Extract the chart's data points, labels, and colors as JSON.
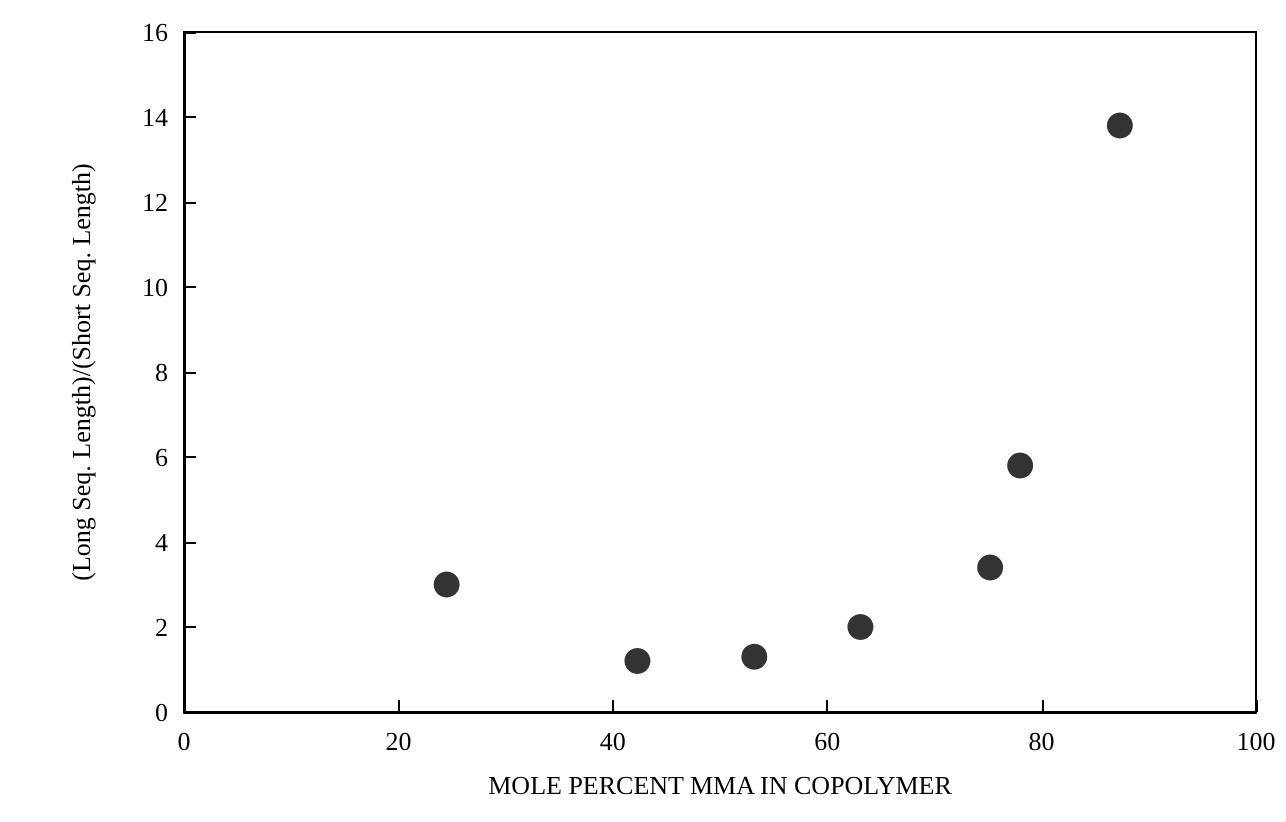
{
  "chart_data": {
    "type": "scatter",
    "xlabel": "MOLE PERCENT MMA IN COPOLYMER",
    "ylabel": "(Long Seq. Length)/(Short Seq. Length)",
    "x": [
      24.5,
      42.3,
      53.2,
      63.1,
      75.2,
      78.0,
      87.3
    ],
    "series": [
      {
        "color": "#000000",
        "values": [
          3.0,
          1.2,
          1.3,
          2.0,
          3.4,
          5.8,
          13.8
        ]
      }
    ],
    "xlim": [
      0,
      100
    ],
    "xticks": [
      0,
      20,
      40,
      60,
      80,
      100
    ],
    "ylim": [
      0,
      16
    ],
    "yticks": [
      0,
      2,
      4,
      6,
      8,
      10,
      12,
      14,
      16
    ],
    "grid": false,
    "marker": "circle"
  }
}
